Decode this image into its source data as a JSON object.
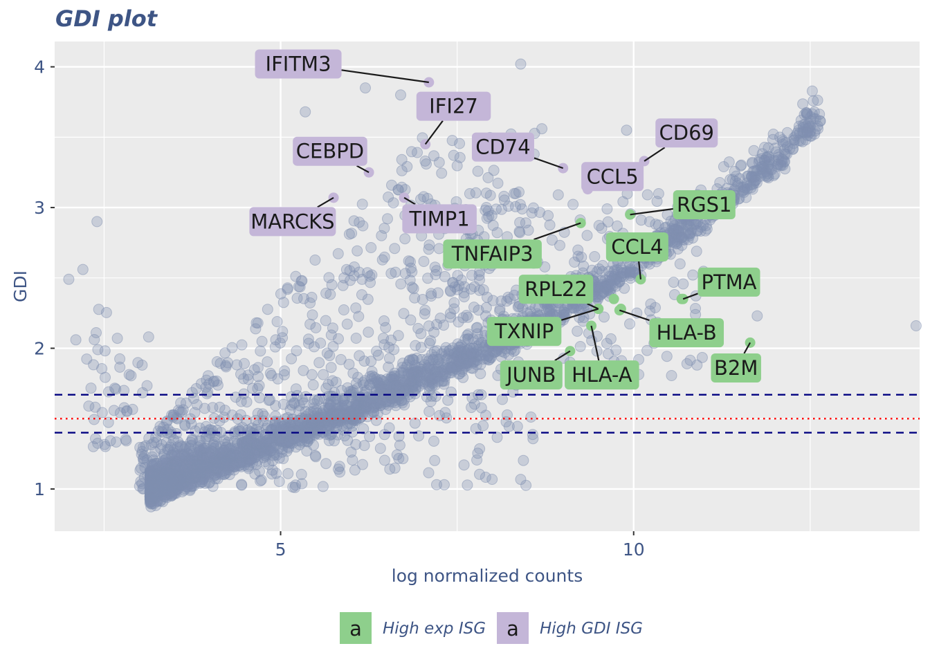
{
  "chart_data": {
    "type": "scatter",
    "title": "GDI plot",
    "xlabel": "log normalized counts",
    "ylabel": "GDI",
    "xlim": [
      1.8,
      14.05
    ],
    "ylim": [
      0.7,
      4.18
    ],
    "xticks": [
      {
        "value": 5,
        "label": "5"
      },
      {
        "value": 10,
        "label": "10"
      }
    ],
    "yticks": [
      {
        "value": 1,
        "label": "1"
      },
      {
        "value": 2,
        "label": "2"
      },
      {
        "value": 3,
        "label": "3"
      },
      {
        "value": 4,
        "label": "4"
      }
    ],
    "x_minor_gridlines": [
      2.5,
      7.5,
      12.5
    ],
    "y_minor_gridlines": [
      1.5,
      2.5,
      3.5
    ],
    "grid": true,
    "background_color": "#ebebeb",
    "point_color": "#8090b0",
    "colors": {
      "High exp ISG": "#8ecf8c",
      "High GDI ISG": "#c4b6d8",
      "cutoff_line": "#000080",
      "reference_line": "#ff0000"
    },
    "reference_lines": [
      {
        "y": 1.67,
        "style": "dashed",
        "color": "#000080"
      },
      {
        "y": 1.4,
        "style": "dashed",
        "color": "#000080"
      },
      {
        "y": 1.5,
        "style": "dotted",
        "color": "#ff0000"
      }
    ],
    "highlighted_genes": [
      {
        "gene": "IFITM3",
        "group": "High GDI ISG",
        "x": 7.1,
        "y": 3.89,
        "label_x": 5.25,
        "label_y": 4.02
      },
      {
        "gene": "IFI27",
        "group": "High GDI ISG",
        "x": 7.05,
        "y": 3.45,
        "label_x": 7.45,
        "label_y": 3.72
      },
      {
        "gene": "CEBPD",
        "group": "High GDI ISG",
        "x": 6.25,
        "y": 3.25,
        "label_x": 5.7,
        "label_y": 3.4
      },
      {
        "gene": "CD74",
        "group": "High GDI ISG",
        "x": 9.0,
        "y": 3.28,
        "label_x": 8.15,
        "label_y": 3.43
      },
      {
        "gene": "CD69",
        "group": "High GDI ISG",
        "x": 10.15,
        "y": 3.33,
        "label_x": 10.75,
        "label_y": 3.53
      },
      {
        "gene": "CCL5",
        "group": "High GDI ISG",
        "x": 9.35,
        "y": 3.13,
        "label_x": 9.7,
        "label_y": 3.22
      },
      {
        "gene": "MARCKS",
        "group": "High GDI ISG",
        "x": 5.75,
        "y": 3.07,
        "label_x": 5.17,
        "label_y": 2.9
      },
      {
        "gene": "TIMP1",
        "group": "High GDI ISG",
        "x": 6.75,
        "y": 3.07,
        "label_x": 7.25,
        "label_y": 2.92
      },
      {
        "gene": "RGS1",
        "group": "High exp ISG",
        "x": 9.95,
        "y": 2.95,
        "label_x": 11.0,
        "label_y": 3.02
      },
      {
        "gene": "TNFAIP3",
        "group": "High exp ISG",
        "x": 9.25,
        "y": 2.89,
        "label_x": 8.0,
        "label_y": 2.67
      },
      {
        "gene": "CCL4",
        "group": "High exp ISG",
        "x": 10.1,
        "y": 2.49,
        "label_x": 10.05,
        "label_y": 2.72
      },
      {
        "gene": "PTMA",
        "group": "High exp ISG",
        "x": 10.7,
        "y": 2.35,
        "label_x": 11.35,
        "label_y": 2.47
      },
      {
        "gene": "RPL22",
        "group": "High exp ISG",
        "x": 9.5,
        "y": 2.28,
        "label_x": 8.9,
        "label_y": 2.42
      },
      {
        "gene": "TXNIP",
        "group": "High exp ISG",
        "x": 9.5,
        "y": 2.28,
        "label_x": 8.45,
        "label_y": 2.12
      },
      {
        "gene": "HLA-B",
        "group": "High exp ISG",
        "x": 9.8,
        "y": 2.27,
        "label_x": 10.75,
        "label_y": 2.11
      },
      {
        "gene": "HLA-A",
        "group": "High exp ISG",
        "x": 9.4,
        "y": 2.16,
        "label_x": 9.55,
        "label_y": 1.81
      },
      {
        "gene": "JUNB",
        "group": "High exp ISG",
        "x": 9.1,
        "y": 1.98,
        "label_x": 8.55,
        "label_y": 1.81
      },
      {
        "gene": "B2M",
        "group": "High exp ISG",
        "x": 11.65,
        "y": 2.04,
        "label_x": 11.45,
        "label_y": 1.86
      }
    ],
    "extra_highlight_points": [
      {
        "group": "High exp ISG",
        "x": 9.72,
        "y": 2.35
      },
      {
        "group": "High exp ISG",
        "x": 9.82,
        "y": 2.28
      },
      {
        "group": "High exp ISG",
        "x": 10.68,
        "y": 2.35
      }
    ],
    "notable_background_points": [
      {
        "x": 8.4,
        "y": 4.02
      },
      {
        "x": 14.0,
        "y": 2.16
      },
      {
        "x": 2.1,
        "y": 2.06
      },
      {
        "x": 2.2,
        "y": 2.56
      },
      {
        "x": 2.0,
        "y": 2.49
      },
      {
        "x": 11.75,
        "y": 2.23
      },
      {
        "x": 8.7,
        "y": 3.56
      },
      {
        "x": 9.9,
        "y": 3.55
      },
      {
        "x": 5.35,
        "y": 3.68
      },
      {
        "x": 7.55,
        "y": 3.66
      },
      {
        "x": 6.7,
        "y": 3.8
      },
      {
        "x": 6.2,
        "y": 3.85
      },
      {
        "x": 2.4,
        "y": 2.9
      },
      {
        "x": 7.8,
        "y": 1.67
      }
    ],
    "legend": {
      "position": "bottom",
      "items": [
        {
          "label": "High exp ISG",
          "key_text": "a",
          "color": "#8ecf8c"
        },
        {
          "label": "High GDI ISG",
          "key_text": "a",
          "color": "#c4b6d8"
        }
      ]
    }
  }
}
